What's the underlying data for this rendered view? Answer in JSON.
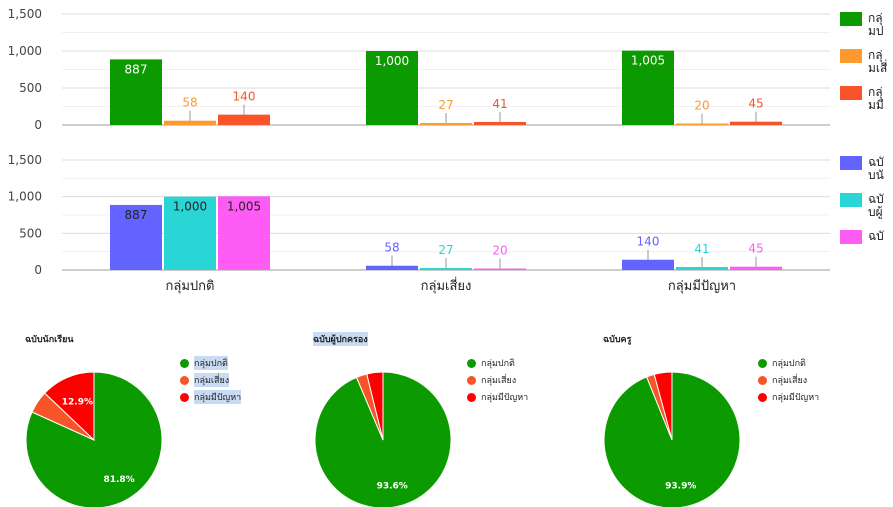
{
  "chart_data": [
    {
      "type": "bar",
      "yticks": [
        "1,500",
        "1,000",
        "500",
        "0"
      ],
      "ylim": [
        0,
        1500
      ],
      "categories": [
        "",
        "",
        ""
      ],
      "series": [
        {
          "name": "กลุ่มปกติ",
          "color": "#0b9a00",
          "values": [
            887,
            1000,
            1005
          ]
        },
        {
          "name": "กลุ่มเสี่ยง",
          "color": "#ff9a2e",
          "values": [
            58,
            27,
            20
          ]
        },
        {
          "name": "กลุ่มมีปัญหา",
          "color": "#f7542a",
          "values": [
            140,
            41,
            45
          ]
        }
      ],
      "legend_position": "right"
    },
    {
      "type": "bar",
      "yticks": [
        "1,500",
        "1,000",
        "500",
        "0"
      ],
      "ylim": [
        0,
        1500
      ],
      "categories": [
        "กลุ่มปกติ",
        "กลุ่มเสี่ยง",
        "กลุ่มมีปัญหา"
      ],
      "series": [
        {
          "name": "ฉบับนักเรียน",
          "color": "#6364ff",
          "values": [
            887,
            58,
            140
          ]
        },
        {
          "name": "ฉบับผู้ปกครอง",
          "color": "#2ad5d5",
          "values": [
            1000,
            27,
            41
          ]
        },
        {
          "name": "ฉบับครู",
          "color": "#ff5cf5",
          "values": [
            1005,
            20,
            45
          ]
        }
      ],
      "legend_position": "right"
    },
    {
      "type": "pie",
      "title": "ฉบับนักเรียน",
      "labels": [
        "กลุ่มปกติ",
        "กลุ่มเสี่ยง",
        "กลุ่มมีปัญหา"
      ],
      "values": [
        887,
        58,
        140
      ],
      "colors": [
        "#0b9a00",
        "#f7542a",
        "#ff0000"
      ],
      "slice_labels": [
        "81.8%",
        "",
        "12.9%"
      ]
    },
    {
      "type": "pie",
      "title": "ฉบับผู้ปกครอง",
      "labels": [
        "กลุ่มปกติ",
        "กลุ่มเสี่ยง",
        "กลุ่มมีปัญหา"
      ],
      "values": [
        1000,
        27,
        41
      ],
      "colors": [
        "#0b9a00",
        "#f7542a",
        "#ff0000"
      ],
      "slice_labels": [
        "93.6%",
        "",
        ""
      ]
    },
    {
      "type": "pie",
      "title": "ฉบับครู",
      "labels": [
        "กลุ่มปกติ",
        "กลุ่มเสี่ยง",
        "กลุ่มมีปัญหา"
      ],
      "values": [
        1005,
        20,
        45
      ],
      "colors": [
        "#0b9a00",
        "#f7542a",
        "#ff0000"
      ],
      "slice_labels": [
        "93.9%",
        "",
        ""
      ]
    }
  ]
}
